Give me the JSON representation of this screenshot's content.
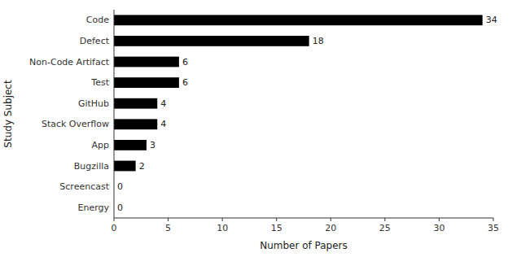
{
  "chart_data": {
    "type": "bar",
    "orientation": "horizontal",
    "categories": [
      "Code",
      "Defect",
      "Non-Code Artifact",
      "Test",
      "GitHub",
      "Stack Overflow",
      "App",
      "Bugzilla",
      "Screencast",
      "Energy"
    ],
    "values": [
      34,
      18,
      6,
      6,
      4,
      4,
      3,
      2,
      0,
      0
    ],
    "color": "#000000",
    "xlabel": "Number of Papers",
    "ylabel": "Study Subject",
    "xlim": [
      0,
      35
    ],
    "xticks": [
      0,
      5,
      10,
      15,
      20,
      25,
      30,
      35
    ],
    "data_labels": true,
    "grid": false
  }
}
